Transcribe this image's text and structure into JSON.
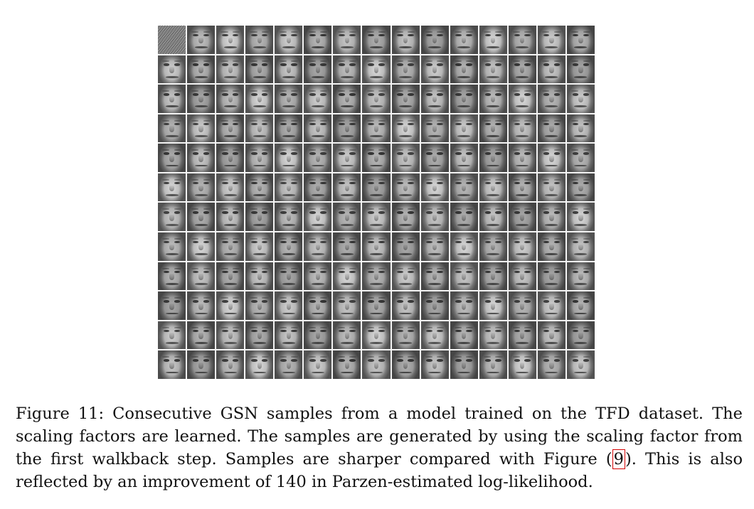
{
  "figure": {
    "grid": {
      "rows": 12,
      "cols": 15,
      "cell_content": "face-sample",
      "first_cell_content": "noise-sample"
    },
    "caption": {
      "label": "Figure 11:",
      "text_before_ref": "Consecutive GSN samples from a model trained on the TFD dataset. The scaling factors are learned. The samples are generated by using the scaling factor from the first walkback step. Samples are sharper compared with Figure (",
      "ref": "9",
      "text_after_ref": "). This is also reflected by an improvement of 140 in Parzen-estimated log-likelihood."
    },
    "colors": {
      "ref_box": "#d40000",
      "text": "#111111"
    }
  }
}
